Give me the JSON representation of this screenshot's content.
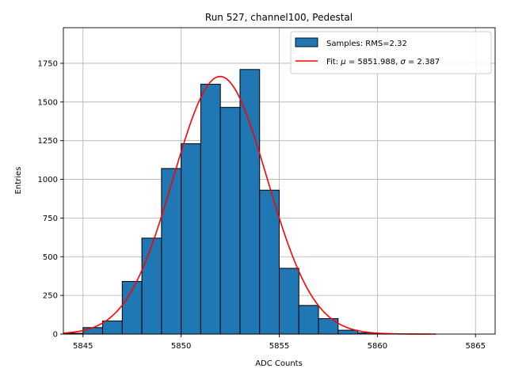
{
  "chart_data": {
    "type": "bar",
    "title": "Run 527, channel100, Pedestal",
    "xlabel": "ADC Counts",
    "ylabel": "Entries",
    "xlim": [
      5844,
      5866
    ],
    "ylim": [
      0,
      1980
    ],
    "grid": true,
    "legend_position": "top-right",
    "x_ticks": [
      5845,
      5850,
      5855,
      5860,
      5865
    ],
    "y_ticks": [
      0,
      250,
      500,
      750,
      1000,
      1250,
      1500,
      1750
    ],
    "bar_color": "#1f77b4",
    "fit_color": "#ff0000",
    "series": [
      {
        "name": "Samples: RMS=2.32",
        "kind": "histogram",
        "bin_width": 1,
        "bin_left_edges": [
          5844,
          5845,
          5846,
          5847,
          5848,
          5849,
          5850,
          5851,
          5852,
          5853,
          5854,
          5855,
          5856,
          5857,
          5858,
          5859,
          5860,
          5861,
          5862
        ],
        "values": [
          5,
          42,
          85,
          340,
          620,
          1070,
          1230,
          1615,
          1465,
          1710,
          930,
          425,
          185,
          100,
          25,
          8,
          2,
          1,
          0
        ]
      },
      {
        "name": "Fit: μ = 5851.988, σ = 2.387",
        "kind": "gaussian-curve",
        "mu": 5851.988,
        "sigma": 2.387,
        "amplitude": 1665,
        "x_range": [
          5844,
          5863
        ]
      }
    ],
    "legend": {
      "entries": [
        {
          "label": "Samples: RMS=2.32"
        },
        {
          "label_prefix": "Fit: ",
          "mu_symbol": "μ",
          "mu_value": " = 5851.988, ",
          "sigma_symbol": "σ",
          "sigma_value": " = 2.387"
        }
      ]
    }
  }
}
